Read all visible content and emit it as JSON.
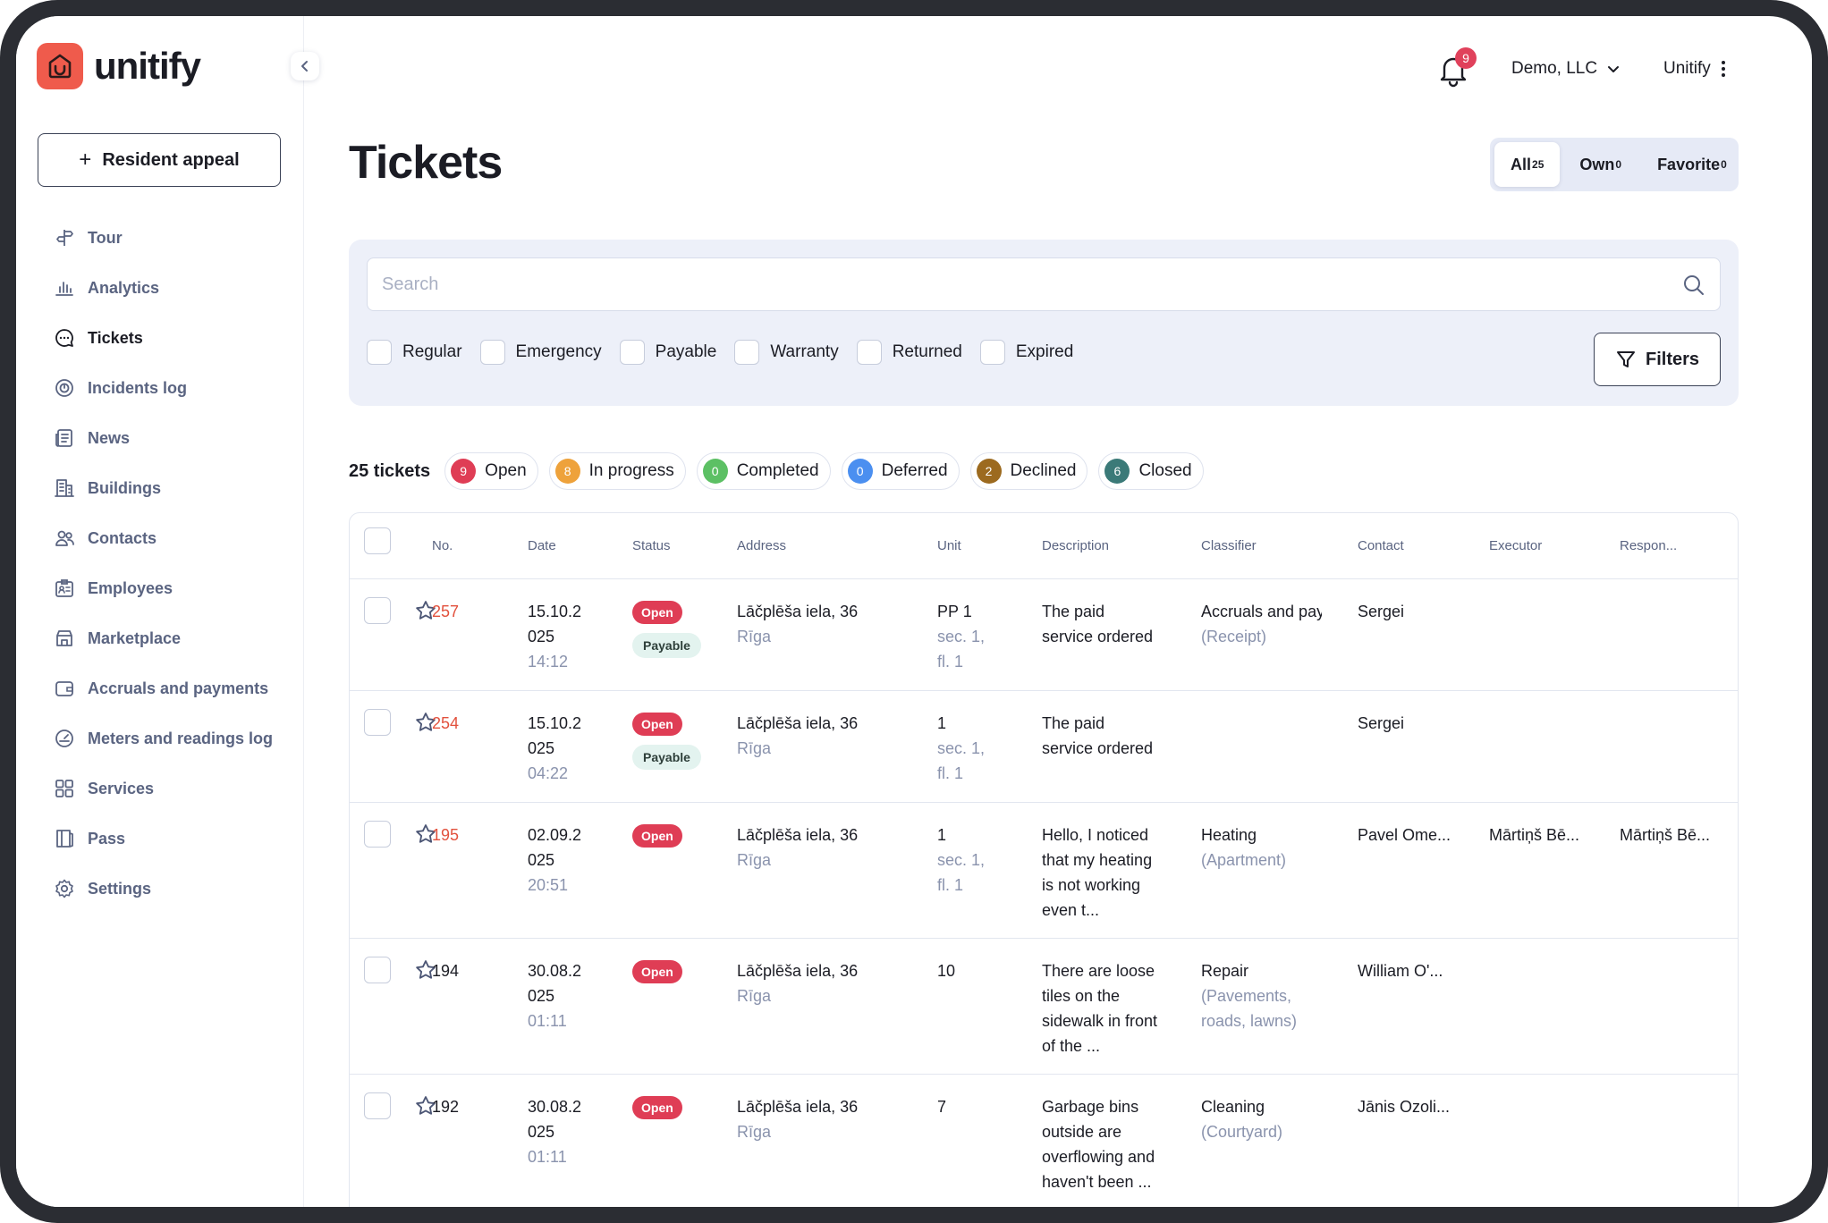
{
  "brand": {
    "name": "unitify"
  },
  "sidebar": {
    "appeal_label": "Resident appeal",
    "items": [
      {
        "label": "Tour",
        "icon": "signpost-icon"
      },
      {
        "label": "Analytics",
        "icon": "bar-chart-icon"
      },
      {
        "label": "Tickets",
        "icon": "chat-bubble-icon",
        "active": true
      },
      {
        "label": "Incidents log",
        "icon": "alert-circle-icon"
      },
      {
        "label": "News",
        "icon": "newspaper-icon"
      },
      {
        "label": "Buildings",
        "icon": "building-icon"
      },
      {
        "label": "Contacts",
        "icon": "people-icon"
      },
      {
        "label": "Employees",
        "icon": "id-badge-icon"
      },
      {
        "label": "Marketplace",
        "icon": "store-icon"
      },
      {
        "label": "Accruals and payments",
        "icon": "wallet-icon"
      },
      {
        "label": "Meters and readings log",
        "icon": "meter-icon"
      },
      {
        "label": "Services",
        "icon": "grid-icon"
      },
      {
        "label": "Pass",
        "icon": "book-icon"
      },
      {
        "label": "Settings",
        "icon": "gear-icon"
      }
    ]
  },
  "topbar": {
    "notifications": "9",
    "organization": "Demo, LLC",
    "user": "Unitify"
  },
  "page": {
    "title": "Tickets",
    "tabs": [
      {
        "label": "All",
        "count": "25",
        "active": true
      },
      {
        "label": "Own",
        "count": "0"
      },
      {
        "label": "Favorite",
        "count": "0"
      }
    ]
  },
  "filters": {
    "search_placeholder": "Search",
    "checkboxes": [
      "Regular",
      "Emergency",
      "Payable",
      "Warranty",
      "Returned",
      "Expired"
    ],
    "filters_label": "Filters"
  },
  "summary": {
    "count_label": "25 tickets",
    "statuses": [
      {
        "count": "9",
        "label": "Open",
        "color": "#df3d55"
      },
      {
        "count": "8",
        "label": "In progress",
        "color": "#eea23b"
      },
      {
        "count": "0",
        "label": "Completed",
        "color": "#5cc064"
      },
      {
        "count": "0",
        "label": "Deferred",
        "color": "#4b8ff0"
      },
      {
        "count": "2",
        "label": "Declined",
        "color": "#9c6a1f"
      },
      {
        "count": "6",
        "label": "Closed",
        "color": "#3b7a78"
      }
    ]
  },
  "table": {
    "columns": [
      "No.",
      "Date",
      "Status",
      "Address",
      "Unit",
      "Description",
      "Classifier",
      "Contact",
      "Executor",
      "Respon..."
    ],
    "rows": [
      {
        "no": "257",
        "date_line1": "15.10.2",
        "date_line2": "025",
        "time": "14:12",
        "status": "Open",
        "payable": "Payable",
        "address": "Lāčplēša iela, 36",
        "city": "Rīga",
        "unit": "PP 1",
        "unit_sub1": "sec. 1,",
        "unit_sub2": "fl. 1",
        "desc": [
          "The paid",
          "service ordered"
        ],
        "classifier": "Accruals and pay",
        "classifier_sub": [
          "(Receipt)"
        ],
        "contact": "Sergei",
        "executor": "",
        "responsible": "",
        "highlight": true
      },
      {
        "no": "254",
        "date_line1": "15.10.2",
        "date_line2": "025",
        "time": "04:22",
        "status": "Open",
        "payable": "Payable",
        "address": "Lāčplēša iela, 36",
        "city": "Rīga",
        "unit": "1",
        "unit_sub1": "sec. 1,",
        "unit_sub2": "fl. 1",
        "desc": [
          "The paid",
          "service ordered"
        ],
        "classifier": "",
        "classifier_sub": [],
        "contact": "Sergei",
        "executor": "",
        "responsible": "",
        "highlight": true
      },
      {
        "no": "195",
        "date_line1": "02.09.2",
        "date_line2": "025",
        "time": "20:51",
        "status": "Open",
        "payable": "",
        "address": "Lāčplēša iela, 36",
        "city": "Rīga",
        "unit": "1",
        "unit_sub1": "sec. 1,",
        "unit_sub2": "fl. 1",
        "desc": [
          "Hello, I noticed",
          "that my heating",
          "is not working",
          "even t..."
        ],
        "classifier": "Heating",
        "classifier_sub": [
          "(Apartment)"
        ],
        "contact": "Pavel Ome...",
        "executor": "Mārtiņš Bē...",
        "responsible": "Mārtiņš Bē...",
        "highlight": true
      },
      {
        "no": "194",
        "date_line1": "30.08.2",
        "date_line2": "025",
        "time": "01:11",
        "status": "Open",
        "payable": "",
        "address": "Lāčplēša iela, 36",
        "city": "Rīga",
        "unit": "10",
        "unit_sub1": "",
        "unit_sub2": "",
        "desc": [
          "There are loose",
          "tiles on the",
          "sidewalk in front",
          "of the ..."
        ],
        "classifier": "Repair",
        "classifier_sub": [
          "(Pavements,",
          "roads, lawns)"
        ],
        "contact": "William O'...",
        "executor": "",
        "responsible": "",
        "highlight": false
      },
      {
        "no": "192",
        "date_line1": "30.08.2",
        "date_line2": "025",
        "time": "01:11",
        "status": "Open",
        "payable": "",
        "address": "Lāčplēša iela, 36",
        "city": "Rīga",
        "unit": "7",
        "unit_sub1": "",
        "unit_sub2": "",
        "desc": [
          "Garbage bins",
          "outside are",
          "overflowing and",
          "haven't been ..."
        ],
        "classifier": "Cleaning",
        "classifier_sub": [
          "(Courtyard)"
        ],
        "contact": "Jānis Ozoli...",
        "executor": "",
        "responsible": "",
        "highlight": false
      }
    ]
  }
}
